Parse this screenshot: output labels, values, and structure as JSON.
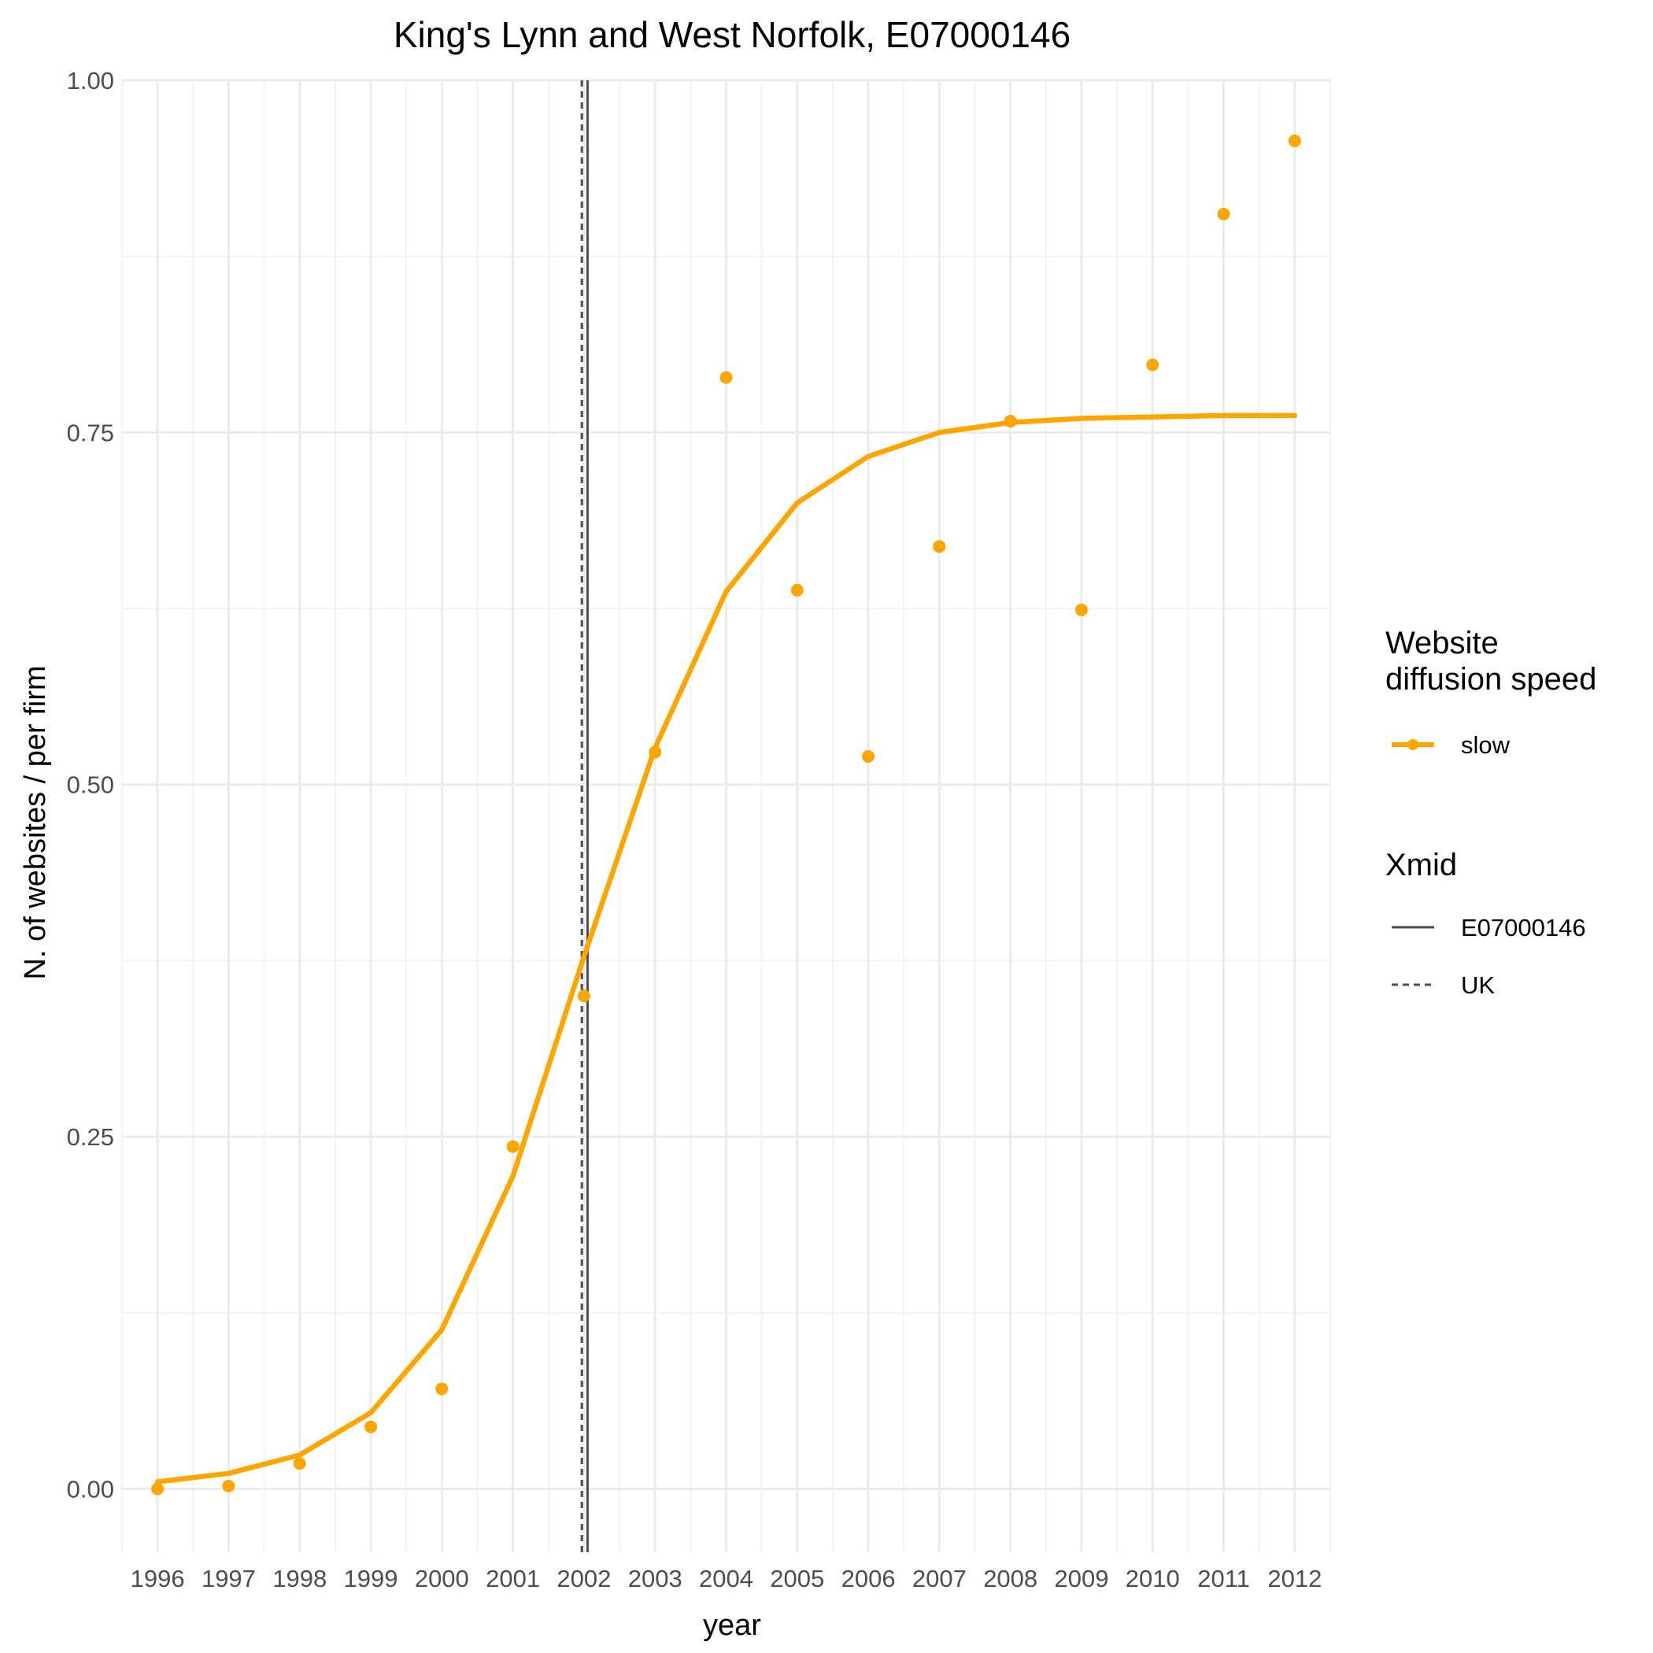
{
  "chart_data": {
    "type": "line",
    "title": "King's Lynn and West Norfolk, E07000146",
    "xlabel": "year",
    "ylabel": "N. of websites / per firm",
    "x": [
      1996,
      1997,
      1998,
      1999,
      2000,
      2001,
      2002,
      2003,
      2004,
      2005,
      2006,
      2007,
      2008,
      2009,
      2010,
      2011,
      2012
    ],
    "x_tick_labels": [
      "1996",
      "1997",
      "1998",
      "1999",
      "2000",
      "2001",
      "2002",
      "2003",
      "2004",
      "2005",
      "2006",
      "2007",
      "2008",
      "2009",
      "2010",
      "2011",
      "2012"
    ],
    "xlim": [
      1995.5,
      2012.5
    ],
    "ylim": [
      -0.045,
      1.0
    ],
    "y_ticks": [
      0.0,
      0.25,
      0.5,
      0.75,
      1.0
    ],
    "y_tick_labels": [
      "0.00",
      "0.25",
      "0.50",
      "0.75",
      "1.00"
    ],
    "grid": true,
    "legend_position": "right",
    "series": [
      {
        "name": "slow",
        "color": "#FFA500",
        "fitted": [
          0.005,
          0.011,
          0.024,
          0.054,
          0.113,
          0.222,
          0.378,
          0.526,
          0.637,
          0.7,
          0.733,
          0.75,
          0.757,
          0.76,
          0.761,
          0.762,
          0.762
        ],
        "observed": [
          0.0,
          0.002,
          0.018,
          0.044,
          0.071,
          0.243,
          0.35,
          0.523,
          0.789,
          0.638,
          0.52,
          0.669,
          0.758,
          0.624,
          0.798,
          0.905,
          0.957
        ]
      }
    ],
    "vlines": [
      {
        "name": "E07000146",
        "x": 2002.05,
        "linetype": "solid",
        "color": "#4d4d4d"
      },
      {
        "name": "UK",
        "x": 2001.97,
        "linetype": "dashed",
        "color": "#4d4d4d"
      }
    ],
    "legend": {
      "speed_title_line1": "Website",
      "speed_title_line2": "diffusion speed",
      "speed_entries": [
        "slow"
      ],
      "xmid_title": "Xmid",
      "xmid_entries": [
        "E07000146",
        "UK"
      ]
    }
  }
}
